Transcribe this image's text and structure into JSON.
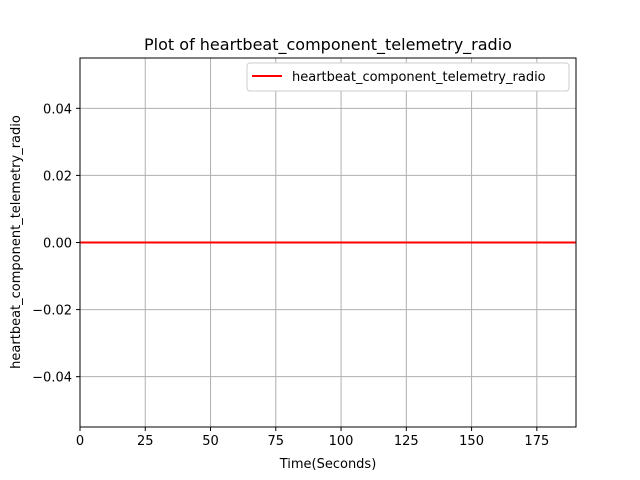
{
  "chart_data": {
    "type": "line",
    "title": "Plot of heartbeat_component_telemetry_radio",
    "xlabel": "Time(Seconds)",
    "ylabel": "heartbeat_component_telemetry_radio",
    "xlim": [
      0,
      190
    ],
    "ylim": [
      -0.055,
      0.055
    ],
    "xticks": [
      0,
      25,
      50,
      75,
      100,
      125,
      150,
      175
    ],
    "yticks": [
      -0.04,
      -0.02,
      0.0,
      0.02,
      0.04
    ],
    "ytick_labels": [
      "−0.04",
      "−0.02",
      "0.00",
      "0.02",
      "0.04"
    ],
    "grid": true,
    "legend_position": "top-right",
    "series": [
      {
        "name": "heartbeat_component_telemetry_radio",
        "color": "#ff0000",
        "x": [
          0,
          190
        ],
        "y": [
          0,
          0
        ]
      }
    ]
  }
}
